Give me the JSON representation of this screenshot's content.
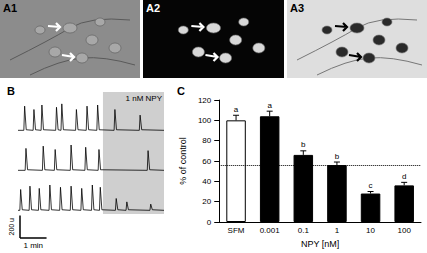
{
  "images": [
    "A1",
    "A2",
    "A3"
  ],
  "chart_data": [
    {
      "type": "line",
      "title": "B",
      "tick_labels": false,
      "color": "#000000",
      "xlim": [
        0,
        5.5
      ],
      "ylim": [
        0,
        320
      ],
      "series": [
        {
          "x": [
            0,
            0.22,
            0.25,
            0.31,
            0.57,
            0.6,
            0.66,
            0.87,
            0.9,
            0.96,
            1.42,
            1.45,
            1.51,
            1.62,
            1.65,
            1.71,
            2.17,
            2.2,
            2.26,
            2.57,
            2.6,
            2.66,
            2.97,
            3.0,
            3.06,
            3.62,
            3.65,
            3.71,
            4.57,
            4.6,
            4.66,
            5.5
          ],
          "values": [
            15,
            15,
            230,
            20,
            15,
            200,
            20,
            15,
            240,
            20,
            15,
            220,
            20,
            15,
            250,
            20,
            15,
            200,
            20,
            15,
            230,
            20,
            15,
            240,
            20,
            15,
            200,
            20,
            15,
            150,
            20,
            15
          ]
        },
        {
          "x": [
            0,
            0.27,
            0.3,
            0.36,
            0.92,
            0.95,
            1.01,
            1.37,
            1.4,
            1.46,
            1.97,
            2.0,
            2.06,
            2.52,
            2.55,
            2.61,
            3.02,
            3.05,
            3.11,
            4.87,
            4.9,
            4.96,
            5.5
          ],
          "values": [
            15,
            15,
            210,
            20,
            15,
            230,
            20,
            15,
            200,
            20,
            15,
            240,
            20,
            15,
            220,
            20,
            15,
            200,
            20,
            15,
            190,
            20,
            15
          ]
        },
        {
          "x": [
            0,
            0.07,
            0.1,
            0.16,
            0.42,
            0.45,
            0.51,
            0.77,
            0.8,
            0.86,
            1.17,
            1.2,
            1.26,
            1.57,
            1.6,
            1.66,
            1.97,
            2.0,
            2.06,
            2.37,
            2.4,
            2.46,
            2.77,
            2.8,
            2.86,
            3.07,
            3.1,
            3.16,
            3.67,
            3.7,
            3.76,
            4.07,
            4.1,
            4.16,
            4.97,
            5.0,
            5.06,
            5.5
          ],
          "values": [
            15,
            15,
            200,
            20,
            15,
            230,
            20,
            15,
            210,
            20,
            15,
            240,
            20,
            15,
            220,
            20,
            15,
            230,
            20,
            15,
            210,
            20,
            15,
            240,
            20,
            15,
            220,
            20,
            15,
            120,
            20,
            15,
            90,
            20,
            15,
            70,
            20,
            15
          ]
        }
      ],
      "annotations": [
        {
          "text": "1 nM NPY",
          "from": 3.2,
          "to": 5.5
        }
      ],
      "scale_bars": [
        {
          "axis": "y",
          "value": 200,
          "label": "200 u"
        },
        {
          "axis": "x",
          "value": 1,
          "label": "1 min"
        }
      ]
    },
    {
      "type": "bar",
      "title": "C",
      "y_label": "% of control",
      "x_label": "NPY [nM]",
      "categories": [
        "SFM",
        "0.001",
        "0.1",
        "1",
        "10",
        "100"
      ],
      "values": [
        100,
        104,
        66,
        56,
        28,
        36
      ],
      "errors": [
        5,
        5,
        4,
        3,
        2,
        3
      ],
      "annotations": [
        "a",
        "a",
        "b",
        "b",
        "c",
        "d"
      ],
      "colors": [
        "#ffffff",
        "#000000",
        "#000000",
        "#000000",
        "#000000",
        "#000000"
      ],
      "reference_line": {
        "value": 56,
        "line_style": "dotted"
      },
      "ylim": [
        0,
        120
      ],
      "yticks": [
        0,
        20,
        40,
        60,
        80,
        100,
        120
      ]
    }
  ]
}
